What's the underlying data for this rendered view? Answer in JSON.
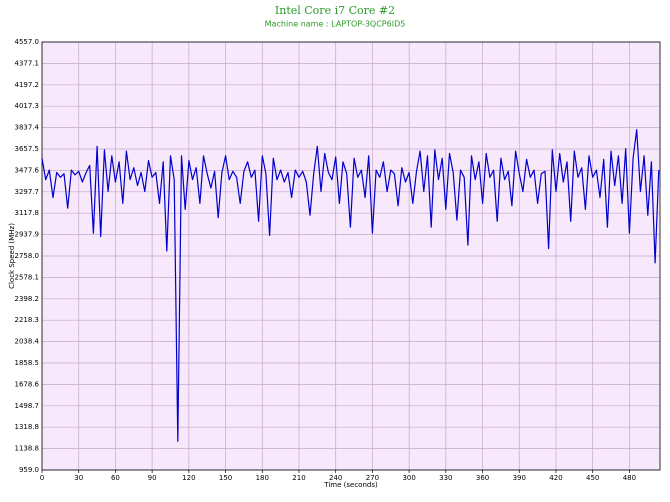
{
  "chart_data": {
    "type": "line",
    "title": "Intel Core i7 Core #2",
    "subtitle": "Machine name : LAPTOP-3QCP6ID5",
    "x_label": "Time (seconds)",
    "y_label": "Clock Speed (MHz)",
    "xlim": [
      0,
      505
    ],
    "xticks": [
      0,
      30,
      60,
      90,
      120,
      150,
      180,
      210,
      240,
      270,
      300,
      330,
      360,
      390,
      420,
      450,
      480
    ],
    "ylim": [
      959,
      4557
    ],
    "yticks": [
      {
        "value": 959,
        "label": "959.0"
      },
      1138.8,
      1318.8,
      1498.7,
      1678.6,
      1858.5,
      2038.4,
      2218.3,
      2398.2,
      2578.1,
      {
        "value": 2758,
        "label": "2758.0"
      },
      2937.9,
      3117.8,
      3297.7,
      3477.6,
      3657.5,
      3837.4,
      4017.3,
      4197.2,
      4377.1,
      {
        "value": 4557,
        "label": "4557.0"
      }
    ],
    "grid": true,
    "x": [
      0,
      3,
      6,
      9,
      12,
      15,
      18,
      21,
      24,
      27,
      30,
      33,
      36,
      39,
      42,
      45,
      48,
      51,
      54,
      57,
      60,
      63,
      66,
      69,
      72,
      75,
      78,
      81,
      84,
      87,
      90,
      93,
      96,
      99,
      102,
      105,
      108,
      111,
      114,
      117,
      120,
      123,
      126,
      129,
      132,
      135,
      138,
      141,
      144,
      147,
      150,
      153,
      156,
      159,
      162,
      165,
      168,
      171,
      174,
      177,
      180,
      183,
      186,
      189,
      192,
      195,
      198,
      201,
      204,
      207,
      210,
      213,
      216,
      219,
      222,
      225,
      228,
      231,
      234,
      237,
      240,
      243,
      246,
      249,
      252,
      255,
      258,
      261,
      264,
      267,
      270,
      273,
      276,
      279,
      282,
      285,
      288,
      291,
      294,
      297,
      300,
      303,
      306,
      309,
      312,
      315,
      318,
      321,
      324,
      327,
      330,
      333,
      336,
      339,
      342,
      345,
      348,
      351,
      354,
      357,
      360,
      363,
      366,
      369,
      372,
      375,
      378,
      381,
      384,
      387,
      390,
      393,
      396,
      399,
      402,
      405,
      408,
      411,
      414,
      417,
      420,
      423,
      426,
      429,
      432,
      435,
      438,
      441,
      444,
      447,
      450,
      453,
      456,
      459,
      462,
      465,
      468,
      471,
      474,
      477,
      480,
      483,
      486,
      489,
      492,
      495,
      498,
      501,
      504
    ],
    "series": [
      {
        "name": "Clock Speed",
        "color": "#0000cc",
        "values": [
          3580,
          3400,
          3480,
          3250,
          3460,
          3420,
          3450,
          3160,
          3480,
          3440,
          3470,
          3380,
          3460,
          3520,
          2950,
          3680,
          2920,
          3650,
          3300,
          3600,
          3380,
          3550,
          3200,
          3640,
          3400,
          3500,
          3350,
          3460,
          3300,
          3560,
          3420,
          3460,
          3200,
          3550,
          2800,
          3600,
          3400,
          1200,
          3600,
          3150,
          3560,
          3400,
          3500,
          3200,
          3600,
          3450,
          3330,
          3470,
          3080,
          3460,
          3600,
          3400,
          3470,
          3420,
          3200,
          3470,
          3550,
          3420,
          3480,
          3050,
          3600,
          3450,
          2930,
          3580,
          3400,
          3480,
          3380,
          3460,
          3250,
          3480,
          3420,
          3470,
          3380,
          3100,
          3450,
          3680,
          3300,
          3620,
          3460,
          3400,
          3590,
          3200,
          3550,
          3450,
          3000,
          3580,
          3420,
          3480,
          3250,
          3600,
          2950,
          3480,
          3420,
          3550,
          3300,
          3480,
          3450,
          3180,
          3500,
          3380,
          3460,
          3200,
          3470,
          3640,
          3300,
          3600,
          3000,
          3650,
          3400,
          3580,
          3150,
          3620,
          3460,
          3060,
          3480,
          3420,
          2850,
          3600,
          3400,
          3550,
          3200,
          3620,
          3420,
          3480,
          3050,
          3580,
          3400,
          3470,
          3180,
          3640,
          3450,
          3300,
          3570,
          3420,
          3480,
          3200,
          3450,
          3470,
          2820,
          3650,
          3300,
          3620,
          3380,
          3550,
          3050,
          3640,
          3420,
          3500,
          3150,
          3600,
          3420,
          3480,
          3250,
          3570,
          3000,
          3640,
          3350,
          3600,
          3200,
          3660,
          2950,
          3580,
          3820,
          3300,
          3600,
          3100,
          3550,
          2700,
          3480
        ]
      }
    ]
  }
}
